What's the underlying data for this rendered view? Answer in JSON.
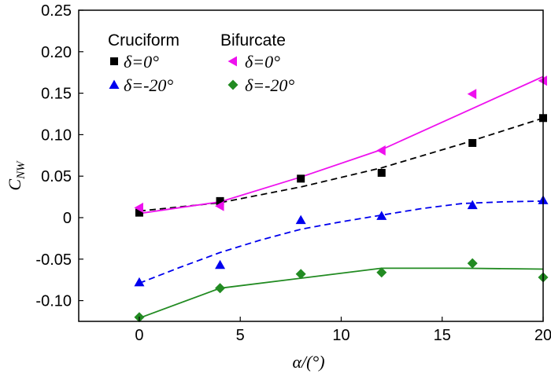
{
  "chart_data": {
    "type": "scatter",
    "title": "",
    "xlabel": "α/(°)",
    "ylabel_main": "C",
    "ylabel_sub": "NW",
    "xlim": [
      -3,
      20
    ],
    "ylim": [
      -0.125,
      0.25
    ],
    "x_ticks": [
      0,
      5,
      10,
      15,
      20
    ],
    "x_tick_labels": [
      "0",
      "5",
      "10",
      "15",
      "20"
    ],
    "y_ticks": [
      -0.1,
      -0.05,
      0,
      0.05,
      0.1,
      0.15,
      0.2,
      0.25
    ],
    "y_tick_labels": [
      "-0.10",
      "-0.05",
      "0",
      "0.05",
      "0.10",
      "0.15",
      "0.20",
      "0.25"
    ],
    "legend": {
      "position": "top-left",
      "group_headers": [
        "Cruciform",
        "Bifurcate"
      ],
      "entries": [
        {
          "label": "δ=0°",
          "series": 0
        },
        {
          "label": "δ=-20°",
          "series": 1
        },
        {
          "label": "δ=0°",
          "series": 2
        },
        {
          "label": "δ=-20°",
          "series": 3
        }
      ]
    },
    "series": [
      {
        "name": "Cruciform δ=0°",
        "color": "#000000",
        "marker": "square",
        "line_style": "dashed",
        "x": [
          0,
          4,
          8,
          12,
          16.5,
          20
        ],
        "values": [
          0.006,
          0.02,
          0.047,
          0.054,
          0.09,
          0.12
        ],
        "fit_x": [
          0,
          4,
          8,
          12,
          16,
          20
        ],
        "fit_y": [
          0.008,
          0.018,
          0.037,
          0.06,
          0.089,
          0.12
        ]
      },
      {
        "name": "Cruciform δ=-20°",
        "color": "#0000ee",
        "marker": "triangle-up",
        "line_style": "dashed",
        "x": [
          0,
          4,
          8,
          12,
          16.5,
          20
        ],
        "values": [
          -0.078,
          -0.057,
          -0.003,
          0.002,
          0.015,
          0.021
        ],
        "fit_x": [
          0,
          2,
          4,
          6,
          8,
          10,
          12,
          14,
          16,
          18,
          20
        ],
        "fit_y": [
          -0.079,
          -0.06,
          -0.042,
          -0.027,
          -0.014,
          -0.005,
          0.003,
          0.011,
          0.017,
          0.019,
          0.02
        ]
      },
      {
        "name": "Bifurcate δ=0°",
        "color": "#ee11ee",
        "marker": "triangle-left",
        "line_style": "solid",
        "x": [
          0,
          4,
          12,
          16.5,
          20
        ],
        "values": [
          0.012,
          0.014,
          0.081,
          0.149,
          0.165
        ],
        "fit_x": [
          0,
          4,
          8,
          12,
          16,
          20
        ],
        "fit_y": [
          0.005,
          0.019,
          0.049,
          0.082,
          0.126,
          0.17
        ]
      },
      {
        "name": "Bifurcate δ=-20°",
        "color": "#228b22",
        "marker": "diamond",
        "line_style": "solid",
        "x": [
          0,
          4,
          8,
          12,
          16.5,
          20
        ],
        "values": [
          -0.12,
          -0.085,
          -0.068,
          -0.066,
          -0.055,
          -0.072
        ],
        "fit_x": [
          0,
          4,
          8,
          12,
          16,
          20
        ],
        "fit_y": [
          -0.121,
          -0.085,
          -0.073,
          -0.061,
          -0.061,
          -0.062
        ]
      }
    ]
  }
}
